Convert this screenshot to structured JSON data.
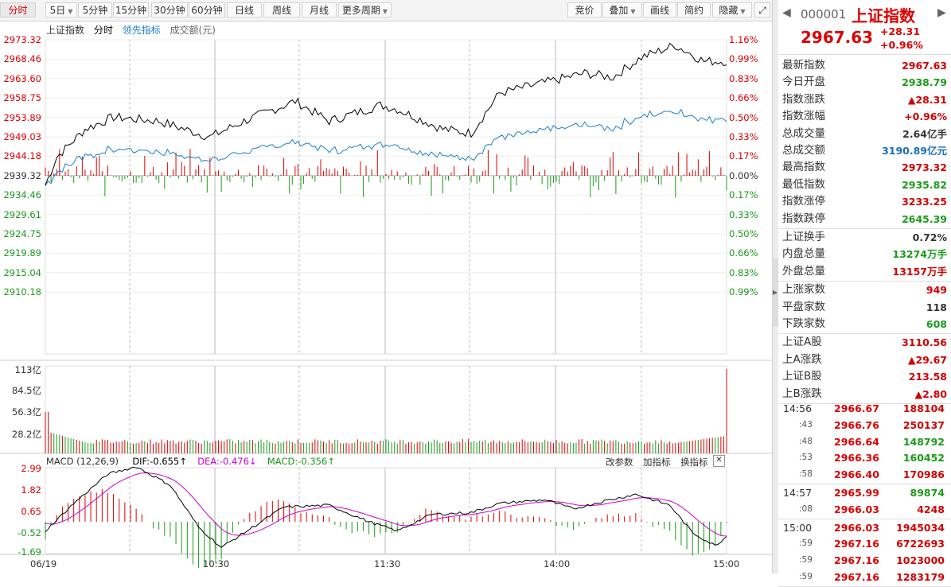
{
  "toolbar": {
    "tabs": [
      {
        "label": "分时",
        "dropdown": false
      },
      {
        "label": "5日",
        "dropdown": true
      },
      {
        "label": "5分钟",
        "dropdown": false
      },
      {
        "label": "15分钟",
        "dropdown": false
      },
      {
        "label": "30分钟",
        "dropdown": false
      },
      {
        "label": "60分钟",
        "dropdown": false
      },
      {
        "label": "日线",
        "dropdown": false
      },
      {
        "label": "周线",
        "dropdown": false
      },
      {
        "label": "月线",
        "dropdown": false
      },
      {
        "label": "更多周期",
        "dropdown": true
      }
    ],
    "right_tabs": [
      {
        "label": "竞价",
        "dropdown": false
      },
      {
        "label": "叠加",
        "dropdown": true
      },
      {
        "label": "画线",
        "dropdown": false
      },
      {
        "label": "简约",
        "dropdown": false
      },
      {
        "label": "隐藏",
        "dropdown": true
      }
    ],
    "expand_icon": "fullscreen-icon"
  },
  "chart_header": {
    "name": "上证指数",
    "mode": "分时",
    "leading": "领先指标",
    "volume": "成交额(元)"
  },
  "price_axis": [
    "2973.32",
    "2968.46",
    "2963.60",
    "2958.75",
    "2953.89",
    "2949.03",
    "2944.18",
    "2939.32",
    "2934.46",
    "2929.61",
    "2924.75",
    "2919.89",
    "2915.04",
    "2910.18"
  ],
  "pct_axis": [
    "1.16%",
    "0.99%",
    "0.83%",
    "0.66%",
    "0.50%",
    "0.33%",
    "0.17%",
    "0.00%",
    "0.17%",
    "0.33%",
    "0.50%",
    "0.66%",
    "0.83%",
    "0.99%"
  ],
  "volume_axis": [
    "113亿",
    "84.5亿",
    "56.3亿",
    "28.2亿"
  ],
  "macd_header": {
    "title": "MACD (12,26,9)",
    "dif": "DIF:-0.655",
    "dea": "DEA:-0.476",
    "macd": "MACD:-0.356",
    "change_params": "改参数",
    "add_indicator": "加指标",
    "switch_indicator": "换指标"
  },
  "macd_axis": [
    "2.99",
    "1.82",
    "0.65",
    "-0.52",
    "-1.69"
  ],
  "time_axis": [
    "06/19",
    "10:30",
    "11:30",
    "14:00",
    "15:00"
  ],
  "quote": {
    "code": "000001",
    "name": "上证指数",
    "price": "2967.63",
    "change": "+28.31",
    "change_pct": "+0.96%"
  },
  "stats_group1": [
    {
      "label": "最新指数",
      "value": "2967.63",
      "color": "#d00000"
    },
    {
      "label": "今日开盘",
      "value": "2938.79",
      "color": "#1a9b1a"
    },
    {
      "label": "指数涨跌",
      "value": "▲28.31",
      "color": "#d00000"
    },
    {
      "label": "指数涨幅",
      "value": "+0.96%",
      "color": "#d00000"
    },
    {
      "label": "总成交量",
      "value": "2.64亿手",
      "color": "#333333"
    },
    {
      "label": "总成交额",
      "value": "3190.89亿元",
      "color": "#1a6fb5"
    },
    {
      "label": "最高指数",
      "value": "2973.32",
      "color": "#d00000"
    },
    {
      "label": "最低指数",
      "value": "2935.82",
      "color": "#1a9b1a"
    },
    {
      "label": "指数涨停",
      "value": "3233.25",
      "color": "#d00000"
    },
    {
      "label": "指数跌停",
      "value": "2645.39",
      "color": "#1a9b1a"
    }
  ],
  "stats_group2": [
    {
      "label": "上证换手",
      "value": "0.72%",
      "color": "#333333"
    },
    {
      "label": "内盘总量",
      "value": "13274万手",
      "color": "#1a9b1a"
    },
    {
      "label": "外盘总量",
      "value": "13157万手",
      "color": "#d00000"
    }
  ],
  "stats_group3": [
    {
      "label": "上涨家数",
      "value": "949",
      "color": "#d00000"
    },
    {
      "label": "平盘家数",
      "value": "118",
      "color": "#333333"
    },
    {
      "label": "下跌家数",
      "value": "608",
      "color": "#1a9b1a"
    }
  ],
  "stats_group4": [
    {
      "label": "上证A股",
      "value": "3110.56",
      "color": "#d00000"
    },
    {
      "label": "上A涨跌",
      "value": "▲29.67",
      "color": "#d00000"
    },
    {
      "label": "上证B股",
      "value": "213.58",
      "color": "#d00000"
    },
    {
      "label": "上B涨跌",
      "value": "▲2.80",
      "color": "#d00000"
    }
  ],
  "ticks_group1": [
    {
      "time": "14:56",
      "price": "2966.67",
      "vol": "188104",
      "color": "#d00000"
    },
    {
      "time": ":43",
      "price": "2966.76",
      "vol": "250137",
      "color": "#d00000"
    },
    {
      "time": ":48",
      "price": "2966.64",
      "vol": "148792",
      "color": "#1a9b1a"
    },
    {
      "time": ":53",
      "price": "2966.36",
      "vol": "160452",
      "color": "#1a9b1a"
    },
    {
      "time": ":58",
      "price": "2966.40",
      "vol": "170986",
      "color": "#d00000"
    }
  ],
  "ticks_group2": [
    {
      "time": "14:57",
      "price": "2965.99",
      "vol": "89874",
      "color": "#1a9b1a"
    },
    {
      "time": ":08",
      "price": "2966.03",
      "vol": "4248",
      "color": "#d00000"
    }
  ],
  "ticks_group3": [
    {
      "time": "15:00",
      "price": "2966.03",
      "vol": "1945034",
      "color": "#d00000"
    },
    {
      "time": ":59",
      "price": "2967.16",
      "vol": "6722693",
      "color": "#d00000"
    },
    {
      "time": ":59",
      "price": "2967.16",
      "vol": "1023000",
      "color": "#d00000"
    },
    {
      "time": ":59",
      "price": "2967.16",
      "vol": "1283179",
      "color": "#d00000"
    }
  ],
  "colors": {
    "up": "#d00000",
    "down": "#1a9b1a",
    "index_line": "#000000",
    "leading_line": "#1a7fc9",
    "dea_line": "#cc00cc"
  }
}
